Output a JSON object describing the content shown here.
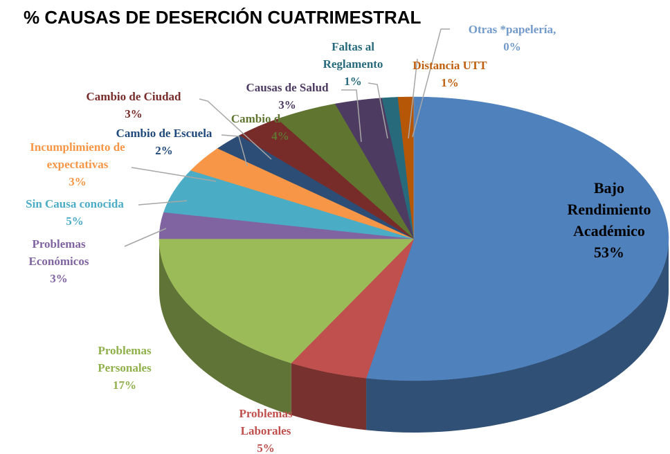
{
  "chart_data": {
    "type": "pie",
    "title": "% CAUSAS DE DESERCIÓN CUATRIMESTRAL",
    "categories": [
      "Bajo Rendimiento Académico",
      "Problemas Laborales",
      "Problemas Personales",
      "Problemas Económicos",
      "Sin Causa conocida",
      "Incumplimiento de expectativas",
      "Cambio de Escuela",
      "Cambio de Ciudad",
      "Cambio de Carrera",
      "Causas de Salud",
      "Faltas al Reglamento",
      "Distancia UTT",
      "Otras *papelería,"
    ],
    "values": [
      53,
      5,
      17,
      3,
      5,
      3,
      2,
      3,
      4,
      3,
      1,
      1,
      0
    ],
    "value_labels": [
      "53%",
      "5%",
      "17%",
      "3%",
      "5%",
      "3%",
      "2%",
      "3%",
      "4%",
      "3%",
      "1%",
      "1%",
      "0%"
    ],
    "colors": [
      "#4f81bd",
      "#c0504d",
      "#9bbb59",
      "#8064a2",
      "#4bacc6",
      "#f79646",
      "#2c4d75",
      "#772c2a",
      "#5f7530",
      "#4d3b62",
      "#276a7c",
      "#b65708",
      "#729aca"
    ],
    "label_colors": [
      "#000000",
      "#c0504d",
      "#8fb04a",
      "#8064a2",
      "#4bacc6",
      "#f79646",
      "#1f497d",
      "#772c2a",
      "#5f7530",
      "#4d3b62",
      "#276a7c",
      "#c0600f",
      "#729aca"
    ]
  }
}
